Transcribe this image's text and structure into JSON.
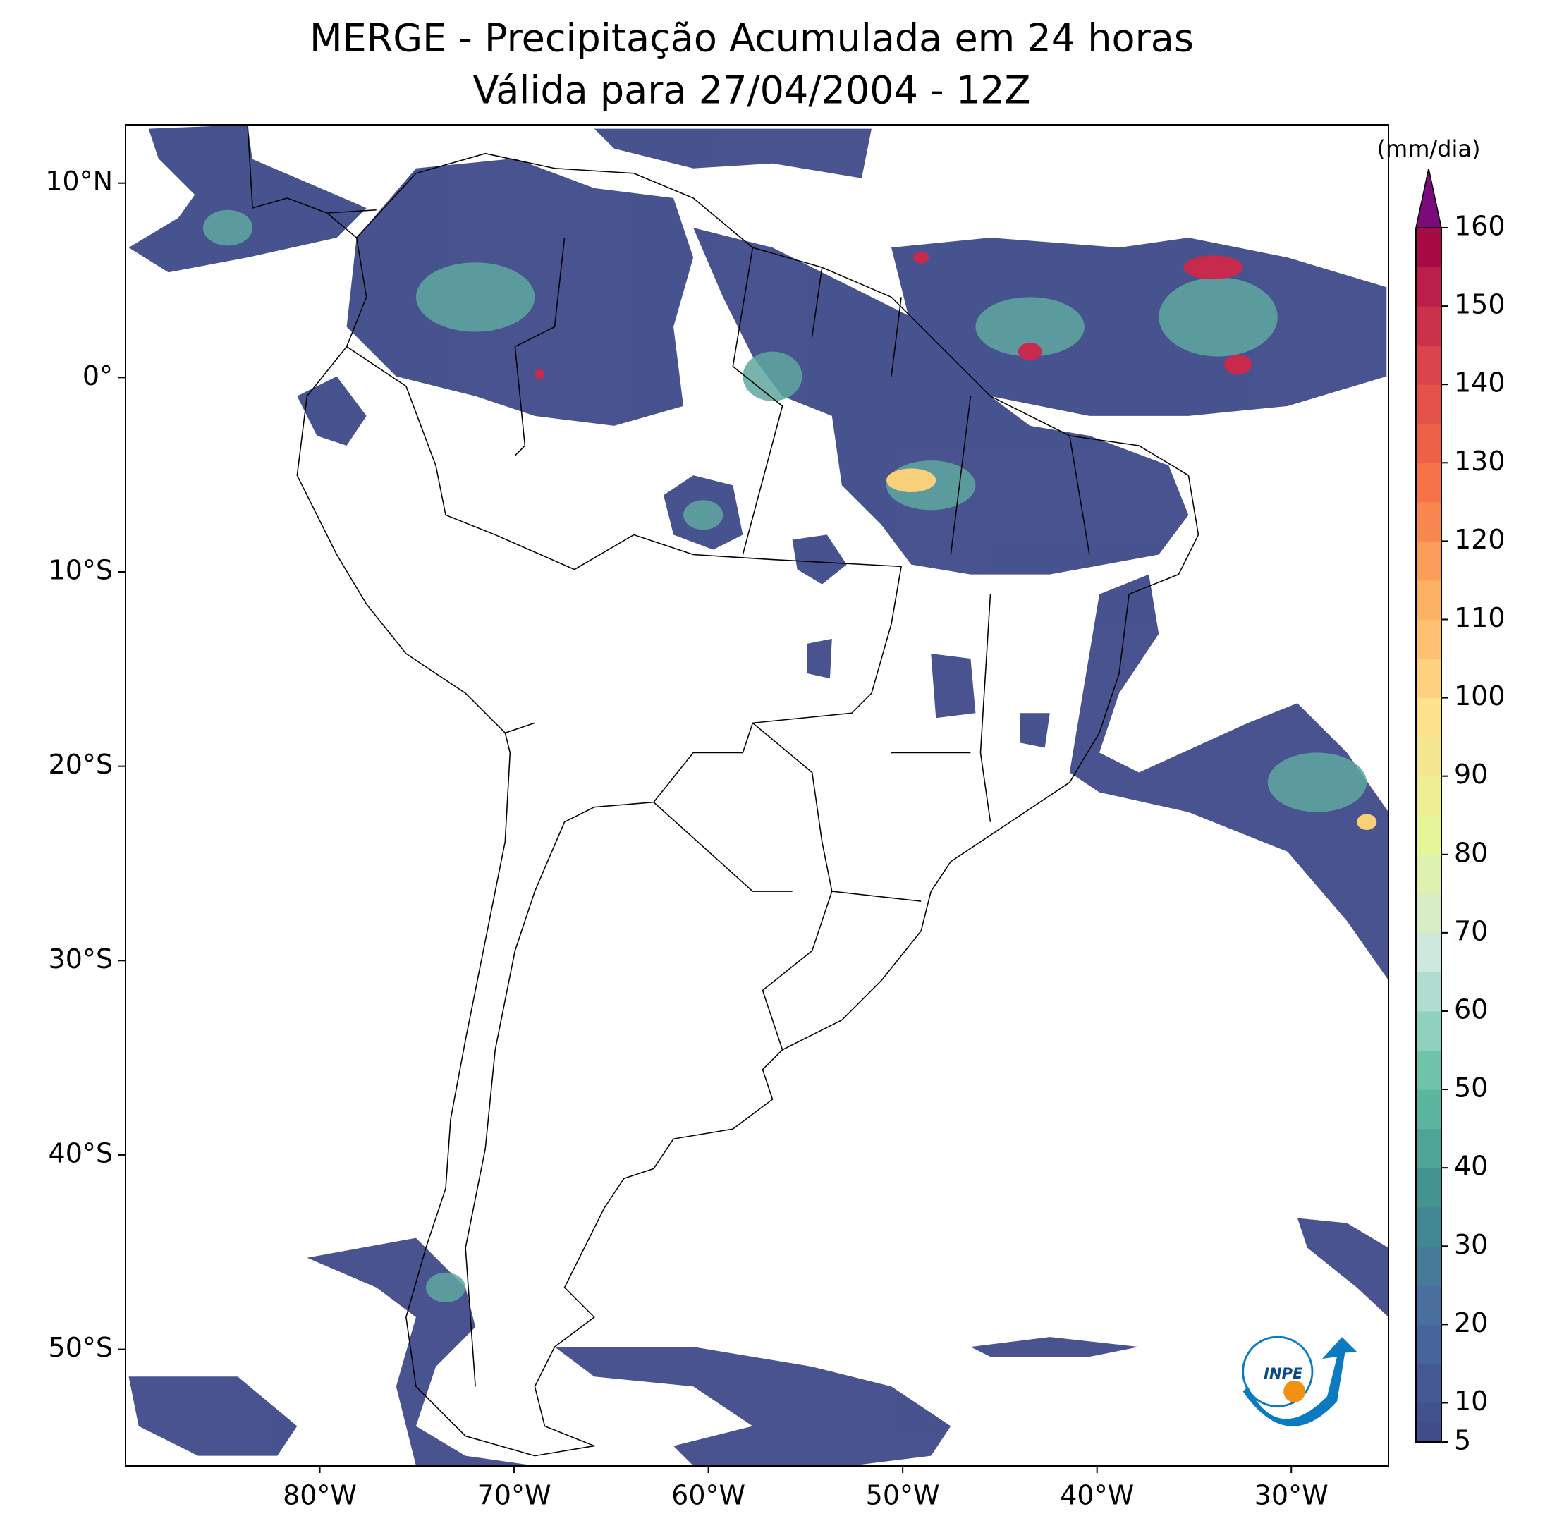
{
  "title": [
    "MERGE - Precipitação Acumulada em 24 horas",
    "Válida para 27/04/2004 - 12Z"
  ],
  "map": {
    "xlim": [
      -90,
      -25
    ],
    "ylim": [
      -56,
      13
    ],
    "xticks": [
      {
        "value": -80,
        "label": "80°W"
      },
      {
        "value": -70,
        "label": "70°W"
      },
      {
        "value": -60,
        "label": "60°W"
      },
      {
        "value": -50,
        "label": "50°W"
      },
      {
        "value": -40,
        "label": "40°W"
      },
      {
        "value": -30,
        "label": "30°W"
      }
    ],
    "yticks": [
      {
        "value": 10,
        "label": "10°N"
      },
      {
        "value": 0,
        "label": "0°"
      },
      {
        "value": -10,
        "label": "10°S"
      },
      {
        "value": -20,
        "label": "20°S"
      },
      {
        "value": -30,
        "label": "30°S"
      },
      {
        "value": -40,
        "label": "40°S"
      },
      {
        "value": -50,
        "label": "50°S"
      }
    ]
  },
  "colorbar": {
    "label": "(mm/dia)",
    "range": [
      5,
      160
    ],
    "ticks": [
      5,
      10,
      20,
      30,
      40,
      50,
      60,
      70,
      80,
      90,
      100,
      110,
      120,
      130,
      140,
      150,
      160
    ],
    "colors": [
      "#3e4a89",
      "#4a6aa0",
      "#3f8f8f",
      "#66c2a5",
      "#cde8e0",
      "#e6f598",
      "#fee08b",
      "#fdae61",
      "#f46d43",
      "#d53e4f",
      "#9e0142"
    ],
    "extend_color": "#7b0a7b"
  },
  "logo": {
    "text": "INPE"
  }
}
